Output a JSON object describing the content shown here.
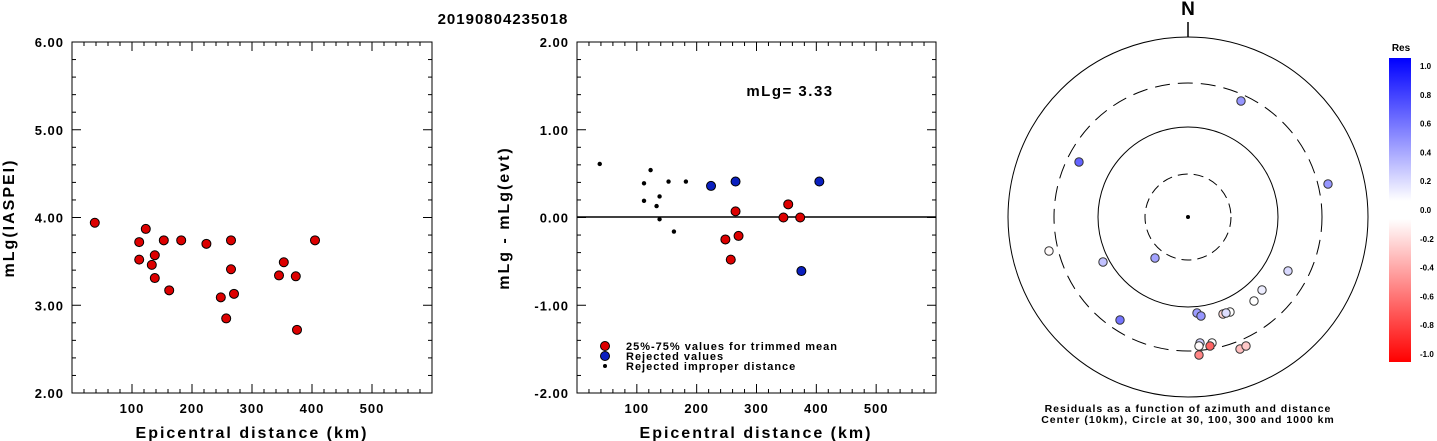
{
  "title": "20190804235018",
  "panel1": {
    "ylabel": "mLg(IASPEI)",
    "xlabel": "Epicentral distance (km)",
    "xlim": [
      0,
      600
    ],
    "ylim": [
      2.0,
      6.0
    ],
    "xticks": [
      "100",
      "200",
      "300",
      "400",
      "500"
    ],
    "yticks": [
      "2.00",
      "3.00",
      "4.00",
      "5.00",
      "6.00"
    ]
  },
  "panel2": {
    "ylabel": "mLg - mLg(evt)",
    "xlabel": "Epicentral distance (km)",
    "xlim": [
      0,
      600
    ],
    "ylim": [
      -2.0,
      2.0
    ],
    "xticks": [
      "100",
      "200",
      "300",
      "400",
      "500"
    ],
    "yticks": [
      "-2.00",
      "-1.00",
      "0.00",
      "1.00",
      "2.00"
    ],
    "annotation": "mLg= 3.33",
    "legend": [
      "25%-75% values for trimmed mean",
      "Rejected values",
      "Rejected improper distance"
    ]
  },
  "panel3": {
    "north_label": "N",
    "caption_line1": "Residuals as a function of azimuth and distance",
    "caption_line2": "Center (10km), Circle at 30, 100, 300 and 1000 km",
    "colorbar_title": "Res",
    "colorbar_ticks": [
      "1.0",
      "0.8",
      "0.6",
      "0.4",
      "0.2",
      "0.0",
      "-0.2",
      "-0.4",
      "-0.6",
      "-0.8",
      "-1.0"
    ]
  },
  "colors": {
    "trimmed": "#dd0000",
    "rejected": "#0a1fbf",
    "improper": "#000000",
    "pos_max": "#0000ff",
    "neg_max": "#ff0000"
  },
  "chart_data": [
    {
      "type": "scatter",
      "x": [
        38,
        112,
        112,
        123,
        133,
        138,
        138,
        153,
        162,
        182,
        224,
        248,
        257,
        265,
        265,
        270,
        345,
        353,
        373,
        375,
        405
      ],
      "y": [
        3.94,
        3.72,
        3.52,
        3.87,
        3.46,
        3.31,
        3.57,
        3.74,
        3.17,
        3.74,
        3.7,
        3.09,
        2.85,
        3.41,
        3.74,
        3.13,
        3.34,
        3.49,
        3.33,
        2.72,
        3.74
      ]
    },
    {
      "type": "scatter",
      "series": [
        {
          "name": "25%-75% values for trimmed mean",
          "x": [
            248,
            257,
            265,
            270,
            345,
            353,
            373
          ],
          "y": [
            -0.25,
            -0.48,
            0.07,
            -0.21,
            0.0,
            0.15,
            0.0
          ]
        },
        {
          "name": "Rejected values",
          "x": [
            224,
            265,
            375,
            405
          ],
          "y": [
            0.36,
            0.41,
            -0.61,
            0.41
          ]
        },
        {
          "name": "Rejected improper distance",
          "x": [
            38,
            112,
            112,
            123,
            133,
            138,
            138,
            153,
            162,
            182
          ],
          "y": [
            0.61,
            0.39,
            0.19,
            0.54,
            0.13,
            -0.02,
            0.24,
            0.41,
            -0.16,
            0.41
          ]
        }
      ]
    },
    {
      "type": "scatter",
      "points": [
        {
          "res": 0.61
        },
        {
          "res": 0.41
        },
        {
          "res": 0.41
        },
        {
          "res": -0.02
        },
        {
          "res": 0.24
        },
        {
          "res": 0.36
        },
        {
          "res": 0.15
        },
        {
          "res": 0.07
        },
        {
          "res": 0.0
        },
        {
          "res": 0.0
        },
        {
          "res": -0.16
        },
        {
          "res": 0.54
        },
        {
          "res": 0.39
        },
        {
          "res": 0.41
        },
        {
          "res": 0.19
        },
        {
          "res": -0.02
        },
        {
          "res": -0.25
        },
        {
          "res": -0.21
        },
        {
          "res": 0.0
        },
        {
          "res": -0.61
        },
        {
          "res": -0.48
        },
        {
          "res": 0.13
        }
      ]
    }
  ]
}
